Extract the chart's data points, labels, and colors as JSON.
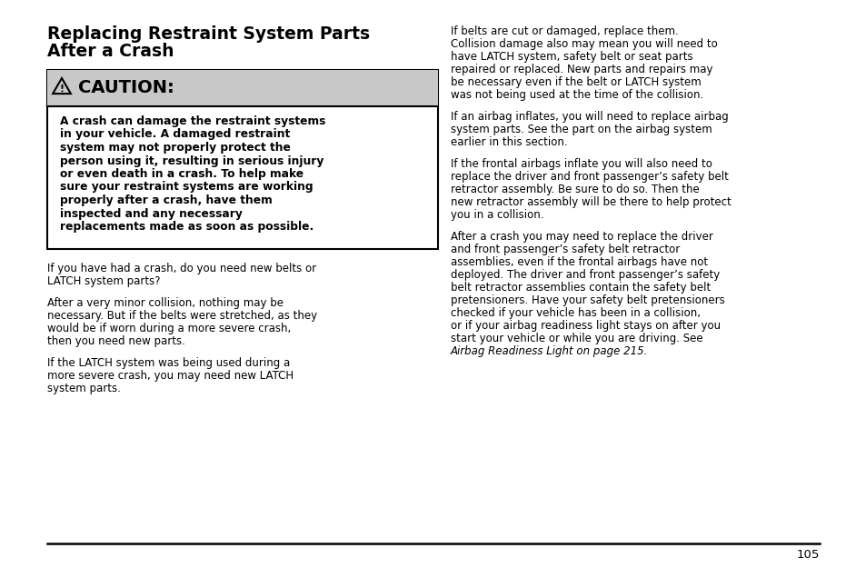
{
  "page_background": "#ffffff",
  "page_number": "105",
  "title_line1": "Replacing Restraint System Parts",
  "title_line2": "After a Crash",
  "caution_header_bg": "#c8c8c8",
  "caution_body_text": "A crash can damage the restraint systems\nin your vehicle. A damaged restraint\nsystem may not properly protect the\nperson using it, resulting in serious injury\nor even death in a crash. To help make\nsure your restraint systems are working\nproperly after a crash, have them\ninspected and any necessary\nreplacements made as soon as possible.",
  "left_paragraphs": [
    "If you have had a crash, do you need new belts or\nLATCH system parts?",
    "After a very minor collision, nothing may be\nnecessary. But if the belts were stretched, as they\nwould be if worn during a more severe crash,\nthen you need new parts.",
    "If the LATCH system was being used during a\nmore severe crash, you may need new LATCH\nsystem parts."
  ],
  "right_para1": "If belts are cut or damaged, replace them.\nCollision damage also may mean you will need to\nhave LATCH system, safety belt or seat parts\nrepaired or replaced. New parts and repairs may\nbe necessary even if the belt or LATCH system\nwas not being used at the time of the collision.",
  "right_para2": "If an airbag inflates, you will need to replace airbag\nsystem parts. See the part on the airbag system\nearlier in this section.",
  "right_para3": "If the frontal airbags inflate you will also need to\nreplace the driver and front passenger’s safety belt\nretractor assembly. Be sure to do so. Then the\nnew retractor assembly will be there to help protect\nyou in a collision.",
  "right_para4_normal": "After a crash you may need to replace the driver\nand front passenger’s safety belt retractor\nassemblies, even if the frontal airbags have not\ndeployed. The driver and front passenger’s safety\nbelt retractor assemblies contain the safety belt\npretensioners. Have your safety belt pretensioners\nchecked if your vehicle has been in a collision,\nor if your airbag readiness light stays on after you\nstart your vehicle or while you are driving. See",
  "right_para4_italic": "Airbag Readiness Light on page 215."
}
